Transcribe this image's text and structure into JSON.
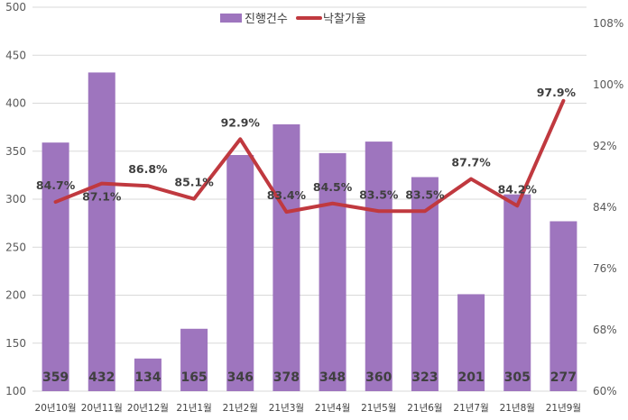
{
  "chart_data": {
    "type": "bar+line",
    "categories": [
      "20년10월",
      "20년11월",
      "20년12월",
      "21년1월",
      "21년2월",
      "21년3월",
      "21년4월",
      "21년5월",
      "21년6월",
      "21년7월",
      "21년8월",
      "21년9월"
    ],
    "series": [
      {
        "name": "진행건수",
        "type": "bar",
        "axis": "left",
        "color": "#9E75BE",
        "values": [
          359,
          432,
          134,
          165,
          346,
          378,
          348,
          360,
          323,
          201,
          305,
          277
        ],
        "labels": [
          "359",
          "432",
          "134",
          "165",
          "346",
          "378",
          "348",
          "360",
          "323",
          "201",
          "305",
          "277"
        ]
      },
      {
        "name": "낙찰가율",
        "type": "line",
        "axis": "right",
        "color": "#C0393F",
        "values": [
          84.7,
          87.1,
          86.8,
          85.1,
          92.9,
          83.4,
          84.5,
          83.5,
          83.5,
          87.7,
          84.2,
          97.9
        ],
        "labels": [
          "84.7%",
          "87.1%",
          "86.8%",
          "85.1%",
          "92.9%",
          "83.4%",
          "84.5%",
          "83.5%",
          "83.5%",
          "87.7%",
          "84.2%",
          "97.9%"
        ]
      }
    ],
    "left_axis": {
      "min": 100,
      "max": 500,
      "ticks": [
        "100",
        "150",
        "200",
        "250",
        "300",
        "350",
        "400",
        "450",
        "500"
      ]
    },
    "right_axis": {
      "min": 60,
      "max": 108,
      "ticks": [
        "60%",
        "68%",
        "76%",
        "84%",
        "92%",
        "100%",
        "108%"
      ]
    },
    "grid": true,
    "legend_position": "top-center"
  }
}
